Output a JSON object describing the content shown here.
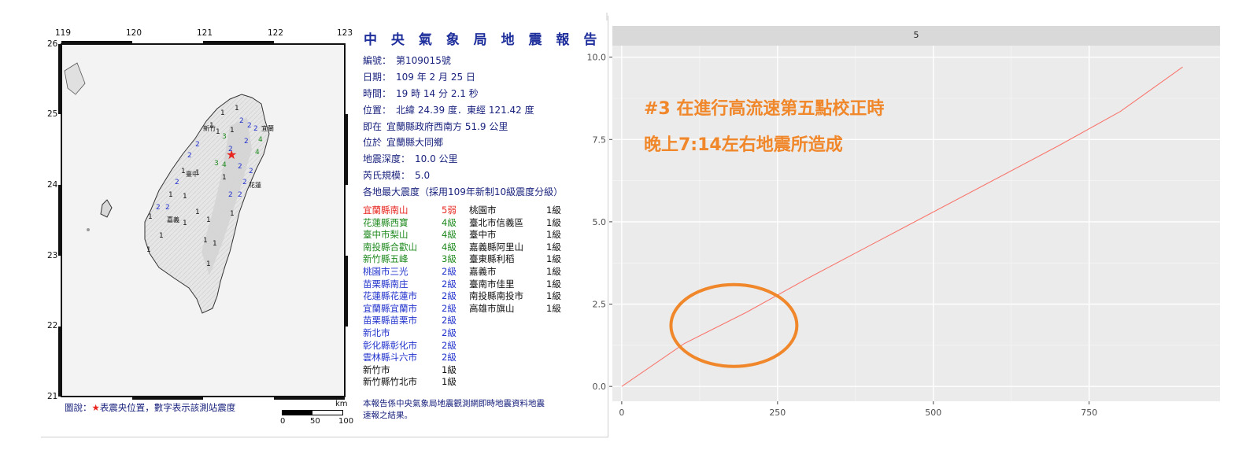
{
  "report": {
    "title": "中 央 氣 象 局 地 震 報 告",
    "fields": [
      {
        "label": "編號：",
        "value": "第109015號"
      },
      {
        "label": "日期：",
        "value": "109 年 2 月 25 日"
      },
      {
        "label": "時間：",
        "value": "19 時 14 分 2.1 秒"
      },
      {
        "label": "位置：",
        "value": "北緯 24.39 度．東經 121.42 度"
      },
      {
        "label": "即在",
        "value": "宜蘭縣政府西南方 51.9 公里"
      },
      {
        "label": "位於",
        "value": "宜蘭縣大同鄉"
      },
      {
        "label": "地震深度：",
        "value": "10.0 公里"
      },
      {
        "label": "芮氏規模：",
        "value": "5.0"
      }
    ],
    "intensity_header": "各地最大震度（採用109年新制10級震度分級）",
    "stations_left": [
      {
        "name": "宜蘭縣南山",
        "level": "5弱",
        "color": "#e8261f"
      },
      {
        "name": "花蓮縣西寶",
        "level": "4級",
        "color": "#1f8a1f"
      },
      {
        "name": "臺中市梨山",
        "level": "4級",
        "color": "#1f8a1f"
      },
      {
        "name": "南投縣合歡山",
        "level": "4級",
        "color": "#1f8a1f"
      },
      {
        "name": "新竹縣五峰",
        "level": "3級",
        "color": "#1f8a1f"
      },
      {
        "name": "桃園市三光",
        "level": "2級",
        "color": "#2233cc"
      },
      {
        "name": "苗栗縣南庄",
        "level": "2級",
        "color": "#2233cc"
      },
      {
        "name": "花蓮縣花蓮市",
        "level": "2級",
        "color": "#2233cc"
      },
      {
        "name": "宜蘭縣宜蘭市",
        "level": "2級",
        "color": "#2233cc"
      },
      {
        "name": "苗栗縣苗栗市",
        "level": "2級",
        "color": "#2233cc"
      },
      {
        "name": "新北市",
        "level": "2級",
        "color": "#2233cc"
      },
      {
        "name": "彰化縣彰化市",
        "level": "2級",
        "color": "#2233cc"
      },
      {
        "name": "雲林縣斗六市",
        "level": "2級",
        "color": "#2233cc"
      },
      {
        "name": "新竹市",
        "level": "1級",
        "color": "#111111"
      },
      {
        "name": "新竹縣竹北市",
        "level": "1級",
        "color": "#111111"
      }
    ],
    "stations_right": [
      {
        "name": "桃園市",
        "level": "1級"
      },
      {
        "name": "臺北市信義區",
        "level": "1級"
      },
      {
        "name": "臺中市",
        "level": "1級"
      },
      {
        "name": "嘉義縣阿里山",
        "level": "1級"
      },
      {
        "name": "臺東縣利稻",
        "level": "1級"
      },
      {
        "name": "嘉義市",
        "level": "1級"
      },
      {
        "name": "臺南市佳里",
        "level": "1級"
      },
      {
        "name": "南投縣南投市",
        "level": "1級"
      },
      {
        "name": "高雄市旗山",
        "level": "1級"
      }
    ],
    "footnote": "本報告係中央氣象局地震觀測網即時地震資料地震速報之結果。",
    "legend": {
      "prefix": "圖說：",
      "star": "★",
      "text": "表震央位置，數字表示該測站震度"
    },
    "map": {
      "lon_ticks": [
        "119",
        "120",
        "121",
        "122",
        "123"
      ],
      "lat_ticks": [
        "26",
        "25",
        "24",
        "23",
        "22",
        "21"
      ],
      "scale": {
        "unit": "km",
        "labels": [
          "0",
          "50",
          "100"
        ]
      },
      "places": [
        "新竹",
        "臺中",
        "嘉義",
        "花蓮",
        "宜蘭"
      ]
    }
  },
  "chart_data": {
    "type": "line",
    "facet_label": "5",
    "title": "",
    "xlabel": "",
    "ylabel": "",
    "xlim": [
      -15,
      960
    ],
    "ylim": [
      -0.45,
      10.35
    ],
    "x_ticks": [
      "0",
      "250",
      "500",
      "750"
    ],
    "y_ticks": [
      "0.0",
      "2.5",
      "5.0",
      "7.5",
      "10.0"
    ],
    "series": [
      {
        "color": "#f8766d",
        "x": [
          0,
          100,
          200,
          300,
          400,
          500,
          600,
          700,
          800,
          900
        ],
        "y": [
          0.0,
          1.3,
          2.25,
          3.3,
          4.3,
          5.3,
          6.3,
          7.3,
          8.35,
          9.7
        ]
      }
    ],
    "highlight_ellipse": {
      "color": "#f0872a",
      "cx": 180,
      "cy": 1.85
    },
    "annotation": {
      "line1": "#3 在進行高流速第五點校正時",
      "line2": "晚上7:14左右地震所造成",
      "color": "#f0872a"
    },
    "panel_background": "#ebebeb",
    "strip_background": "#d9d9d9"
  }
}
